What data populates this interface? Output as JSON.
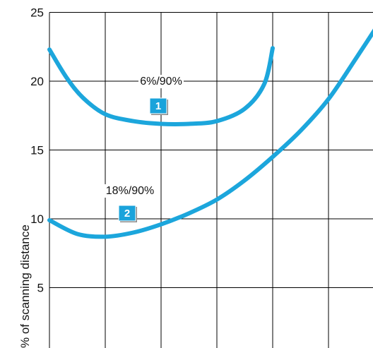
{
  "chart_data": {
    "type": "line",
    "title": "",
    "xlabel": "",
    "ylabel": "% of scanning distance",
    "ylim": [
      1,
      25
    ],
    "xlim": [
      0,
      6
    ],
    "yticks": [
      5,
      10,
      15,
      20,
      25
    ],
    "grid": true,
    "series": [
      {
        "name": "6%/90%",
        "marker": "1",
        "color": "#1ca6dc",
        "x": [
          0,
          0.3,
          0.6,
          1.0,
          1.5,
          2.0,
          2.5,
          3.0,
          3.5,
          3.85,
          4.0
        ],
        "y": [
          22.3,
          20.3,
          18.8,
          17.6,
          17.1,
          16.9,
          16.9,
          17.1,
          18.0,
          19.8,
          22.4
        ]
      },
      {
        "name": "18%/90%",
        "marker": "2",
        "color": "#1ca6dc",
        "x": [
          0,
          0.5,
          1.0,
          1.5,
          2.0,
          2.5,
          3.0,
          3.5,
          4.0,
          4.5,
          5.0,
          5.5,
          6.0
        ],
        "y": [
          9.9,
          8.9,
          8.7,
          9.0,
          9.6,
          10.4,
          11.4,
          12.8,
          14.5,
          16.4,
          18.7,
          21.7,
          24.8
        ]
      }
    ]
  }
}
